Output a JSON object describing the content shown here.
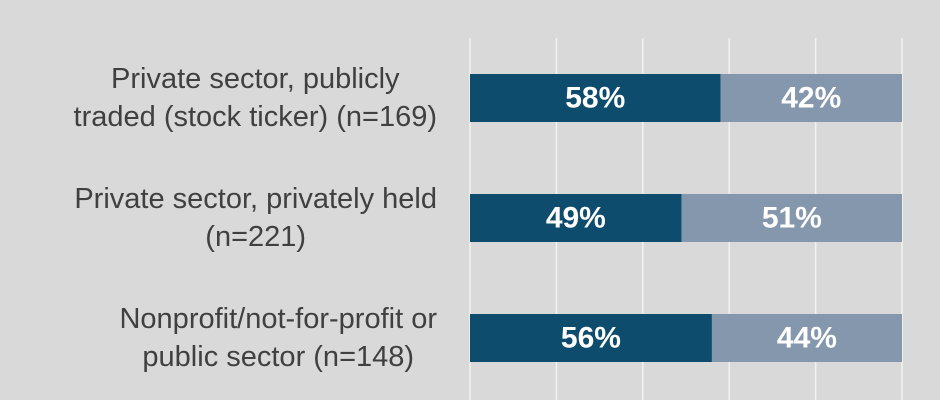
{
  "chart_data": {
    "type": "bar",
    "orientation": "horizontal",
    "stacked": true,
    "normalized_percent": true,
    "categories": [
      [
        "Private sector, publicly",
        "traded (stock ticker) (n=169)"
      ],
      [
        "Private sector, privately held",
        "(n=221)"
      ],
      [
        "Nonprofit/not-for-profit or",
        "public sector (n=148)"
      ]
    ],
    "series": [
      {
        "values": [
          58,
          49,
          56
        ],
        "labels": [
          "58%",
          "49%",
          "56%"
        ],
        "color": "#0e4c6e"
      },
      {
        "values": [
          42,
          51,
          44
        ],
        "labels": [
          "42%",
          "51%",
          "44%"
        ],
        "color": "#8597ad"
      }
    ],
    "xlim": [
      0,
      100
    ],
    "grid": true,
    "legend": false,
    "colors": {
      "background": "#d9d9d9",
      "gridline": "#f2f2f2",
      "category_text": "#404040",
      "bar_label_text": "#ffffff"
    }
  }
}
